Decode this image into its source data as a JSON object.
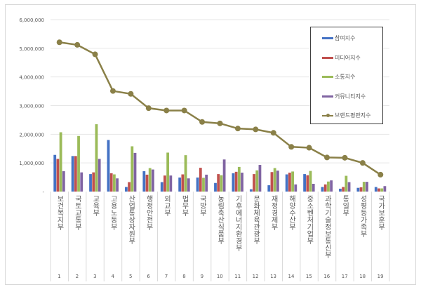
{
  "chart_data": {
    "type": "bar+line",
    "categories": [
      "보건복지부",
      "국토교통부",
      "교육부",
      "고용노동부",
      "산업통상자원부",
      "행정안전부",
      "외교부",
      "법무부",
      "국방부",
      "농림축산식품부",
      "기후에너지환경부",
      "문화체육관광부",
      "재정경제부",
      "해양수산부",
      "중소벤처기업부",
      "과학기술정보통신부",
      "통일부",
      "성평등가족부",
      "국가보훈부"
    ],
    "rank_labels": [
      "1",
      "2",
      "3",
      "4",
      "5",
      "6",
      "7",
      "8",
      "9",
      "10",
      "11",
      "12",
      "13",
      "14",
      "15",
      "16",
      "17",
      "18",
      "19"
    ],
    "y_ticks": [
      "-",
      "1,000,000",
      "2,000,000",
      "3,000,000",
      "4,000,000",
      "5,000,000",
      "6,000,000"
    ],
    "ylim": [
      0,
      6000000
    ],
    "grid": true,
    "legend_position": "top-right",
    "series": [
      {
        "name": "참여지수",
        "type": "bar",
        "color": "#4472c4",
        "values": [
          1280000,
          1240000,
          610000,
          1800000,
          160000,
          710000,
          330000,
          490000,
          490000,
          300000,
          640000,
          80000,
          220000,
          600000,
          610000,
          160000,
          100000,
          130000,
          160000
        ]
      },
      {
        "name": "미디어지수",
        "type": "bar",
        "color": "#c0504d",
        "values": [
          1140000,
          1240000,
          670000,
          640000,
          330000,
          590000,
          560000,
          600000,
          830000,
          610000,
          690000,
          610000,
          680000,
          660000,
          570000,
          250000,
          160000,
          150000,
          110000
        ]
      },
      {
        "name": "소통지수",
        "type": "bar",
        "color": "#9bbb59",
        "values": [
          2070000,
          1940000,
          2350000,
          600000,
          1580000,
          820000,
          1360000,
          1270000,
          480000,
          570000,
          860000,
          740000,
          820000,
          700000,
          720000,
          350000,
          550000,
          340000,
          110000
        ]
      },
      {
        "name": "커뮤니티지수",
        "type": "bar",
        "color": "#8064a2",
        "values": [
          710000,
          670000,
          1140000,
          460000,
          1350000,
          770000,
          560000,
          460000,
          590000,
          1120000,
          660000,
          930000,
          730000,
          250000,
          270000,
          390000,
          330000,
          340000,
          190000
        ]
      },
      {
        "name": "브랜드평판지수",
        "type": "line",
        "color": "#8a8048",
        "values": [
          5210000,
          5120000,
          4790000,
          3510000,
          3410000,
          2910000,
          2830000,
          2830000,
          2430000,
          2380000,
          2200000,
          2170000,
          2050000,
          1560000,
          1530000,
          1190000,
          1180000,
          1000000,
          590000
        ]
      }
    ]
  }
}
